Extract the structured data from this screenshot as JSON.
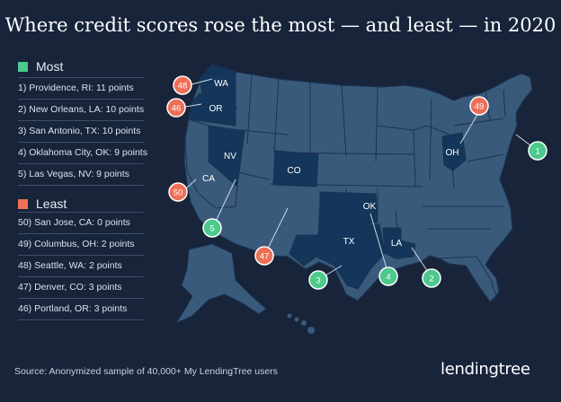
{
  "title": "Where credit scores rose the most — and least — in 2020",
  "colors": {
    "background": "#17243a",
    "most": "#4cc98c",
    "least": "#ee6f57",
    "state_fill": "#3a5a7c",
    "highlight_fill": "#13365a",
    "state_border": "#1c3250"
  },
  "legend": {
    "most": {
      "label": "Most",
      "items": [
        "1) Providence, RI: 11 points",
        "2) New Orleans, LA: 10 points",
        "3) San Antonio, TX: 10 points",
        "4) Oklahoma City, OK: 9 points",
        "5) Las Vegas, NV: 9 points"
      ]
    },
    "least": {
      "label": "Least",
      "items": [
        "50) San Jose, CA: 0 points",
        "49) Columbus, OH: 2 points",
        "48) Seattle, WA: 2 points",
        "47) Denver, CO: 3 points",
        "46) Portland, OR: 3 points"
      ]
    }
  },
  "map": {
    "state_labels": [
      "WA",
      "OR",
      "NV",
      "CA",
      "CO",
      "OK",
      "TX",
      "LA",
      "OH"
    ],
    "markers": {
      "most": [
        "1",
        "2",
        "3",
        "4",
        "5"
      ],
      "least": [
        "48",
        "46",
        "50",
        "47",
        "49"
      ]
    }
  },
  "source": "Source: Anonymized sample of 40,000+ My LendingTree users",
  "logo": "lendingtree"
}
